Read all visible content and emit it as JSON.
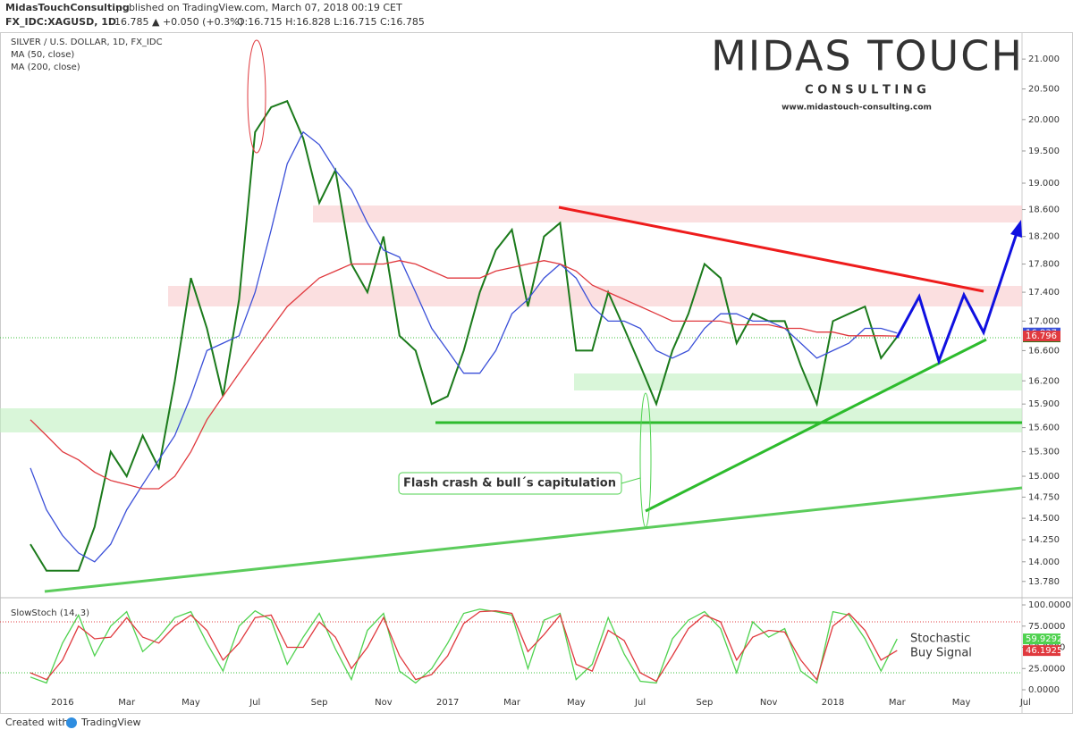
{
  "header": {
    "publisher": "MidasTouchConsulting",
    "published": "published on TradingView.com, March 07, 2018 00:19 CET",
    "symbol": "FX_IDC:XAGUSD, 1D",
    "quote": "16.785 ▲ +0.050 (+0.3%)",
    "ohlc": "O:16.715 H:16.828 L:16.715 C:16.785"
  },
  "logo": {
    "name": "MIDAS TOUCH",
    "tagline": "C O N S U L T I N G",
    "url": "www.midastouch-consulting.com"
  },
  "footer": {
    "created": "Created with",
    "brand": "TradingView"
  },
  "chart_data": [
    {
      "type": "line",
      "title": "SILVER / U.S. DOLLAR, 1D, FX_IDC",
      "log_scale": true,
      "categories": [
        null,
        null,
        "2016",
        null,
        null,
        null,
        "Mar",
        null,
        null,
        null,
        "May",
        null,
        null,
        null,
        "Jul",
        null,
        null,
        null,
        "Sep",
        null,
        null,
        null,
        "Nov",
        null,
        null,
        null,
        "2017",
        null,
        null,
        null,
        "Mar",
        null,
        null,
        null,
        "May",
        null,
        null,
        null,
        "Jul",
        null,
        null,
        null,
        "Sep",
        null,
        null,
        null,
        "Nov",
        null,
        null,
        null,
        "2018",
        null,
        null,
        null,
        "Mar",
        null,
        null,
        null,
        "May",
        null,
        null,
        null,
        "Jul"
      ],
      "series": [
        {
          "color": "#1b7a1b",
          "values": [
            14.2,
            13.9,
            13.9,
            13.9,
            14.4,
            15.3,
            15.0,
            15.5,
            15.1,
            16.2,
            17.6,
            16.9,
            16.0,
            17.3,
            19.8,
            20.2,
            20.3,
            19.7,
            18.7,
            19.2,
            17.8,
            17.4,
            18.2,
            16.8,
            16.6,
            15.9,
            16.0,
            16.6,
            17.4,
            18.0,
            18.3,
            17.2,
            18.2,
            18.4,
            16.6,
            16.6,
            17.4,
            16.9,
            16.4,
            15.9,
            16.6,
            17.1,
            17.8,
            17.6,
            16.7,
            17.1,
            17.0,
            17.0,
            16.4,
            15.9,
            17.0,
            17.1,
            17.2,
            16.5,
            16.785,
            null,
            null,
            null,
            null,
            null,
            null,
            null,
            null
          ]
        },
        {
          "name": "MA (50, close)",
          "color": "#3a4fd8",
          "values": [
            15.1,
            14.6,
            14.3,
            14.1,
            14.0,
            14.2,
            14.6,
            14.9,
            15.2,
            15.5,
            16.0,
            16.6,
            16.7,
            16.8,
            17.4,
            18.3,
            19.3,
            19.8,
            19.6,
            19.2,
            18.9,
            18.4,
            18.0,
            17.9,
            17.4,
            16.9,
            16.6,
            16.3,
            16.3,
            16.6,
            17.1,
            17.3,
            17.6,
            17.8,
            17.6,
            17.2,
            17.0,
            17.0,
            16.9,
            16.6,
            16.5,
            16.6,
            16.9,
            17.1,
            17.1,
            17.0,
            17.0,
            16.9,
            16.7,
            16.5,
            16.6,
            16.7,
            16.9,
            16.9,
            16.837,
            null,
            null,
            null,
            null,
            null,
            null,
            null,
            null
          ]
        },
        {
          "name": "MA (200, close)",
          "color": "#e0393e",
          "values": [
            15.7,
            15.5,
            15.3,
            15.2,
            15.05,
            14.95,
            14.9,
            14.85,
            14.85,
            15.0,
            15.3,
            15.7,
            16.0,
            16.3,
            16.6,
            16.9,
            17.2,
            17.4,
            17.6,
            17.7,
            17.8,
            17.8,
            17.8,
            17.85,
            17.8,
            17.7,
            17.6,
            17.6,
            17.6,
            17.7,
            17.75,
            17.8,
            17.85,
            17.8,
            17.7,
            17.5,
            17.4,
            17.3,
            17.2,
            17.1,
            17.0,
            17.0,
            17.0,
            17.0,
            16.95,
            16.95,
            16.95,
            16.9,
            16.9,
            16.85,
            16.85,
            16.8,
            16.8,
            16.8,
            16.796,
            null,
            null,
            null,
            null,
            null,
            null,
            null,
            null
          ]
        }
      ],
      "ylim": [
        13.61,
        21.43
      ],
      "yticks": [
        {
          "value": 21,
          "label": "21.000"
        },
        {
          "value": 20.5,
          "label": "20.500"
        },
        {
          "value": 20,
          "label": "20.000"
        },
        {
          "value": 19.5,
          "label": "19.500"
        },
        {
          "value": 19,
          "label": "19.000"
        },
        {
          "value": 18.6,
          "label": "18.600"
        },
        {
          "value": 18.2,
          "label": "18.200"
        },
        {
          "value": 17.8,
          "label": "17.800"
        },
        {
          "value": 17.4,
          "label": "17.400"
        },
        {
          "value": 17,
          "label": "17.000"
        },
        {
          "value": 16.6,
          "label": "16.600"
        },
        {
          "value": 16.2,
          "label": "16.200"
        },
        {
          "value": 15.9,
          "label": "15.900"
        },
        {
          "value": 15.6,
          "label": "15.600"
        },
        {
          "value": 15.3,
          "label": "15.300"
        },
        {
          "value": 15,
          "label": "15.000"
        },
        {
          "value": 14.75,
          "label": "14.750"
        },
        {
          "value": 14.5,
          "label": "14.500"
        },
        {
          "value": 14.25,
          "label": "14.250"
        },
        {
          "value": 14,
          "label": "14.000"
        },
        {
          "value": 13.78,
          "label": "13.780"
        }
      ],
      "annotations": [
        "Flash crash & bull´s capitulation"
      ]
    },
    {
      "type": "line",
      "title": "SlowStoch (14, 3)",
      "series": [
        {
          "color": "#4fd24f",
          "values": [
            15,
            8,
            55,
            88,
            40,
            75,
            92,
            45,
            62,
            85,
            92,
            55,
            22,
            75,
            93,
            82,
            30,
            62,
            90,
            48,
            12,
            70,
            90,
            22,
            8,
            25,
            55,
            90,
            95,
            92,
            88,
            25,
            82,
            90,
            12,
            30,
            85,
            42,
            10,
            8,
            60,
            82,
            92,
            72,
            20,
            80,
            62,
            72,
            22,
            8,
            92,
            88,
            60,
            22,
            59.9292,
            null,
            null,
            null,
            null,
            null,
            null,
            null,
            null
          ]
        },
        {
          "color": "#e0393e",
          "values": [
            20,
            12,
            35,
            75,
            60,
            62,
            85,
            62,
            55,
            75,
            88,
            70,
            35,
            55,
            85,
            88,
            50,
            50,
            80,
            62,
            25,
            50,
            85,
            40,
            12,
            18,
            40,
            78,
            92,
            93,
            90,
            45,
            65,
            88,
            30,
            22,
            70,
            58,
            20,
            10,
            40,
            72,
            88,
            80,
            35,
            62,
            70,
            68,
            35,
            12,
            75,
            90,
            70,
            35,
            46.1925,
            null,
            null,
            null,
            null,
            null,
            null,
            null,
            null
          ]
        }
      ],
      "ylim": [
        -6.3,
        107.4
      ],
      "yticks": [
        {
          "value": 100,
          "label": "100.0000"
        },
        {
          "value": 75,
          "label": "75.0000"
        },
        {
          "value": 50,
          "label": "50.0000"
        },
        {
          "value": 25,
          "label": "25.0000"
        },
        {
          "value": 0,
          "label": "0.0000"
        }
      ],
      "annotations": [
        "Stochastic",
        "Buy Signal"
      ]
    }
  ]
}
